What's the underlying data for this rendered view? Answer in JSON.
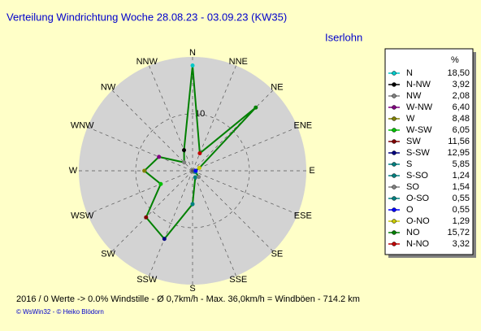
{
  "chart_data": {
    "type": "radar",
    "title": "Verteilung Windrichtung   Woche 28.08.23 - 03.09.23 (KW35)",
    "subtitle": "Iserlohn",
    "legend_header": "%",
    "directions": [
      "N",
      "NNE",
      "NE",
      "ENE",
      "E",
      "ESE",
      "SE",
      "SSE",
      "S",
      "SSW",
      "SW",
      "WSW",
      "W",
      "WNW",
      "NW",
      "NNW"
    ],
    "names": [
      "N",
      "N-NW",
      "NW",
      "W-NW",
      "W",
      "W-SW",
      "SW",
      "S-SW",
      "S",
      "S-SO",
      "SO",
      "O-SO",
      "O",
      "O-NO",
      "NO",
      "N-NO"
    ],
    "colors": [
      "#00c8c8",
      "#000000",
      "#808080",
      "#800080",
      "#808000",
      "#00c000",
      "#800000",
      "#000080",
      "#008080",
      "#008080",
      "#808080",
      "#008080",
      "#0000ff",
      "#c8c800",
      "#008000",
      "#c00000"
    ],
    "values": [
      18.5,
      3.92,
      2.08,
      6.4,
      8.48,
      6.05,
      11.56,
      12.95,
      5.85,
      1.24,
      1.54,
      0.55,
      0.55,
      1.29,
      15.72,
      3.32
    ],
    "value_labels": [
      "18,50",
      "3,92",
      "2,08",
      "6,40",
      "8,48",
      "6,05",
      "11,56",
      "12,95",
      "5,85",
      "1,24",
      "1,54",
      "0,55",
      "0,55",
      "1,29",
      "15,72",
      "3,32"
    ],
    "line_color": "#008000",
    "rlim": [
      0,
      20
    ],
    "rticks": [
      10
    ],
    "footer": "2016 / 0 Werte  -> 0.0% Windstille   -   Ø 0,7km/h   -   Max. 36,0km/h = Windböen   -   714.2 km",
    "credit": "© WsWin32  -  © Heiko Blödorn"
  }
}
